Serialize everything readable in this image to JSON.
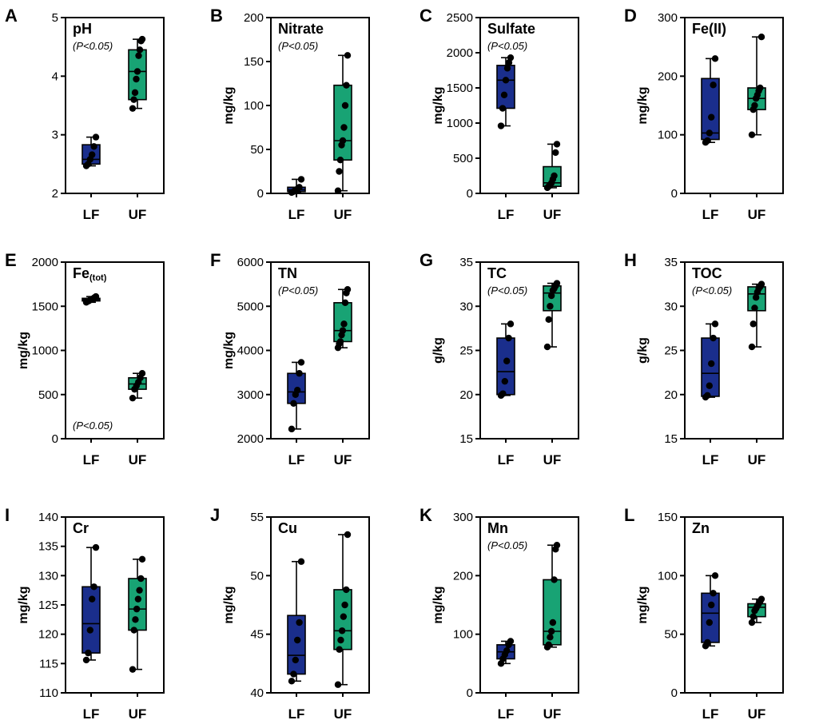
{
  "colors": {
    "LF": "#1a2e8c",
    "UF": "#18a374",
    "frame": "#000000",
    "point": "#000000"
  },
  "chart_data": [
    {
      "panel": "A",
      "type": "box",
      "title": "pH",
      "title_sub": "",
      "note": "(P<0.05)",
      "note_pos": "top",
      "ylabel": "",
      "ylim": [
        2,
        5
      ],
      "yticks": [
        "2",
        "3",
        "4",
        "5"
      ],
      "ytick_values": [
        2,
        3,
        4,
        5
      ],
      "categories": [
        "LF",
        "UF"
      ],
      "series": [
        {
          "name": "LF",
          "min": 2.47,
          "q1": 2.5,
          "median": 2.58,
          "q3": 2.83,
          "max": 2.96,
          "points": [
            2.47,
            2.5,
            2.58,
            2.66,
            2.8,
            2.96
          ]
        },
        {
          "name": "UF",
          "min": 3.45,
          "q1": 3.6,
          "median": 4.08,
          "q3": 4.45,
          "max": 4.63,
          "points": [
            3.45,
            3.6,
            3.72,
            3.95,
            4.08,
            4.35,
            4.45,
            4.6,
            4.63
          ]
        }
      ]
    },
    {
      "panel": "B",
      "type": "box",
      "title": "Nitrate",
      "title_sub": "",
      "note": "(P<0.05)",
      "note_pos": "top",
      "ylabel": "mg/kg",
      "ylim": [
        0,
        200
      ],
      "yticks": [
        "0",
        "50",
        "100",
        "150",
        "200"
      ],
      "ytick_values": [
        0,
        50,
        100,
        150,
        200
      ],
      "categories": [
        "LF",
        "UF"
      ],
      "series": [
        {
          "name": "LF",
          "min": 1,
          "q1": 2,
          "median": 4,
          "q3": 7,
          "max": 16,
          "points": [
            1,
            2,
            4,
            5,
            7,
            16
          ]
        },
        {
          "name": "UF",
          "min": 3,
          "q1": 38,
          "median": 60,
          "q3": 123,
          "max": 157,
          "points": [
            3,
            25,
            38,
            55,
            60,
            75,
            100,
            123,
            157
          ]
        }
      ]
    },
    {
      "panel": "C",
      "type": "box",
      "title": "Sulfate",
      "title_sub": "",
      "note": "(P<0.05)",
      "note_pos": "top",
      "ylabel": "mg/kg",
      "ylim": [
        0,
        2500
      ],
      "yticks": [
        "0",
        "500",
        "1000",
        "1500",
        "2000",
        "2500"
      ],
      "ytick_values": [
        0,
        500,
        1000,
        1500,
        2000,
        2500
      ],
      "categories": [
        "LF",
        "UF"
      ],
      "series": [
        {
          "name": "LF",
          "min": 960,
          "q1": 1210,
          "median": 1610,
          "q3": 1820,
          "max": 1930,
          "points": [
            960,
            1210,
            1400,
            1610,
            1780,
            1860,
            1930
          ]
        },
        {
          "name": "UF",
          "min": 80,
          "q1": 100,
          "median": 150,
          "q3": 380,
          "max": 700,
          "points": [
            80,
            100,
            120,
            150,
            200,
            250,
            580,
            700
          ]
        }
      ]
    },
    {
      "panel": "D",
      "type": "box",
      "title": "Fe(II)",
      "title_sub": "",
      "note": "",
      "note_pos": "",
      "ylabel": "mg/kg",
      "ylim": [
        0,
        300
      ],
      "yticks": [
        "0",
        "100",
        "200",
        "300"
      ],
      "ytick_values": [
        0,
        100,
        200,
        300
      ],
      "categories": [
        "LF",
        "UF"
      ],
      "series": [
        {
          "name": "LF",
          "min": 87,
          "q1": 92,
          "median": 103,
          "q3": 196,
          "max": 230,
          "points": [
            87,
            90,
            103,
            130,
            185,
            230
          ]
        },
        {
          "name": "UF",
          "min": 100,
          "q1": 143,
          "median": 162,
          "q3": 180,
          "max": 267,
          "points": [
            100,
            143,
            150,
            162,
            168,
            175,
            180,
            267
          ]
        }
      ]
    },
    {
      "panel": "E",
      "type": "box",
      "title": "Fe",
      "title_sub": "(tot)",
      "note": "(P<0.05)",
      "note_pos": "bottom",
      "ylabel": "mg/kg",
      "ylim": [
        0,
        2000
      ],
      "yticks": [
        "0",
        "500",
        "1000",
        "1500",
        "2000"
      ],
      "ytick_values": [
        0,
        500,
        1000,
        1500,
        2000
      ],
      "categories": [
        "LF",
        "UF"
      ],
      "series": [
        {
          "name": "LF",
          "min": 1545,
          "q1": 1560,
          "median": 1575,
          "q3": 1590,
          "max": 1610,
          "points": [
            1545,
            1555,
            1560,
            1570,
            1575,
            1580,
            1590,
            1600,
            1610
          ]
        },
        {
          "name": "UF",
          "min": 460,
          "q1": 560,
          "median": 620,
          "q3": 690,
          "max": 740,
          "points": [
            460,
            560,
            600,
            640,
            690,
            740
          ]
        }
      ]
    },
    {
      "panel": "F",
      "type": "box",
      "title": "TN",
      "title_sub": "",
      "note": "(P<0.05)",
      "note_pos": "top",
      "ylabel": "mg/kg",
      "ylim": [
        2000,
        6000
      ],
      "yticks": [
        "2000",
        "3000",
        "4000",
        "5000",
        "6000"
      ],
      "ytick_values": [
        2000,
        3000,
        4000,
        5000,
        6000
      ],
      "categories": [
        "LF",
        "UF"
      ],
      "series": [
        {
          "name": "LF",
          "min": 2220,
          "q1": 2800,
          "median": 3060,
          "q3": 3480,
          "max": 3730,
          "points": [
            2220,
            2800,
            3000,
            3100,
            3480,
            3730
          ]
        },
        {
          "name": "UF",
          "min": 4060,
          "q1": 4200,
          "median": 4450,
          "q3": 5080,
          "max": 5380,
          "points": [
            4060,
            4150,
            4200,
            4350,
            4450,
            4600,
            5080,
            5300,
            5380
          ]
        }
      ]
    },
    {
      "panel": "G",
      "type": "box",
      "title": "TC",
      "title_sub": "",
      "note": "(P<0.05)",
      "note_pos": "top",
      "ylabel": "g/kg",
      "ylim": [
        15,
        35
      ],
      "yticks": [
        "15",
        "20",
        "25",
        "30",
        "35"
      ],
      "ytick_values": [
        15,
        20,
        25,
        30,
        35
      ],
      "categories": [
        "LF",
        "UF"
      ],
      "series": [
        {
          "name": "LF",
          "min": 19.9,
          "q1": 20.0,
          "median": 22.6,
          "q3": 26.4,
          "max": 28.0,
          "points": [
            19.9,
            20.1,
            21.5,
            23.8,
            26.4,
            28.0
          ]
        },
        {
          "name": "UF",
          "min": 25.4,
          "q1": 29.5,
          "median": 31.5,
          "q3": 32.3,
          "max": 32.6,
          "points": [
            25.4,
            28.5,
            30.0,
            31.2,
            31.8,
            32.0,
            32.3,
            32.6
          ]
        }
      ]
    },
    {
      "panel": "H",
      "type": "box",
      "title": "TOC",
      "title_sub": "",
      "note": "(P<0.05)",
      "note_pos": "top",
      "ylabel": "g/kg",
      "ylim": [
        15,
        35
      ],
      "yticks": [
        "15",
        "20",
        "25",
        "30",
        "35"
      ],
      "ytick_values": [
        15,
        20,
        25,
        30,
        35
      ],
      "categories": [
        "LF",
        "UF"
      ],
      "series": [
        {
          "name": "LF",
          "min": 19.7,
          "q1": 19.8,
          "median": 22.4,
          "q3": 26.4,
          "max": 28.0,
          "points": [
            19.7,
            19.9,
            21.0,
            23.5,
            26.4,
            28.0
          ]
        },
        {
          "name": "UF",
          "min": 25.4,
          "q1": 29.5,
          "median": 31.4,
          "q3": 32.2,
          "max": 32.5,
          "points": [
            25.4,
            28.0,
            29.8,
            31.0,
            31.6,
            32.0,
            32.2,
            32.5
          ]
        }
      ]
    },
    {
      "panel": "I",
      "type": "box",
      "title": "Cr",
      "title_sub": "",
      "note": "",
      "note_pos": "",
      "ylabel": "mg/kg",
      "ylim": [
        110,
        140
      ],
      "yticks": [
        "110",
        "115",
        "120",
        "125",
        "130",
        "135",
        "140"
      ],
      "ytick_values": [
        110,
        115,
        120,
        125,
        130,
        135,
        140
      ],
      "categories": [
        "LF",
        "UF"
      ],
      "series": [
        {
          "name": "LF",
          "min": 115.6,
          "q1": 116.8,
          "median": 121.8,
          "q3": 128.1,
          "max": 134.8,
          "points": [
            115.6,
            116.8,
            120.7,
            126.0,
            128.1,
            134.8
          ]
        },
        {
          "name": "UF",
          "min": 114.0,
          "q1": 120.7,
          "median": 124.3,
          "q3": 129.5,
          "max": 132.8,
          "points": [
            114.0,
            120.7,
            122.5,
            124.3,
            126.0,
            127.5,
            129.5,
            132.8
          ]
        }
      ]
    },
    {
      "panel": "J",
      "type": "box",
      "title": "Cu",
      "title_sub": "",
      "note": "",
      "note_pos": "",
      "ylabel": "mg/kg",
      "ylim": [
        40,
        55
      ],
      "yticks": [
        "40",
        "45",
        "50",
        "55"
      ],
      "ytick_values": [
        40,
        45,
        50,
        55
      ],
      "categories": [
        "LF",
        "UF"
      ],
      "series": [
        {
          "name": "LF",
          "min": 41.0,
          "q1": 41.6,
          "median": 43.2,
          "q3": 46.6,
          "max": 51.2,
          "points": [
            41.0,
            41.6,
            42.8,
            44.5,
            46.0,
            51.2
          ]
        },
        {
          "name": "UF",
          "min": 40.7,
          "q1": 43.7,
          "median": 45.3,
          "q3": 48.8,
          "max": 53.5,
          "points": [
            40.7,
            43.7,
            44.5,
            45.3,
            46.5,
            47.5,
            48.8,
            53.5
          ]
        }
      ]
    },
    {
      "panel": "K",
      "type": "box",
      "title": "Mn",
      "title_sub": "",
      "note": "(P<0.05)",
      "note_pos": "top",
      "ylabel": "mg/kg",
      "ylim": [
        0,
        300
      ],
      "yticks": [
        "0",
        "100",
        "200",
        "300"
      ],
      "ytick_values": [
        0,
        100,
        200,
        300
      ],
      "categories": [
        "LF",
        "UF"
      ],
      "series": [
        {
          "name": "LF",
          "min": 50,
          "q1": 58,
          "median": 70,
          "q3": 82,
          "max": 88,
          "points": [
            50,
            58,
            65,
            72,
            82,
            88
          ]
        },
        {
          "name": "UF",
          "min": 78,
          "q1": 82,
          "median": 105,
          "q3": 193,
          "max": 252,
          "points": [
            78,
            82,
            95,
            105,
            120,
            193,
            245,
            252
          ]
        }
      ]
    },
    {
      "panel": "L",
      "type": "box",
      "title": "Zn",
      "title_sub": "",
      "note": "",
      "note_pos": "",
      "ylabel": "mg/kg",
      "ylim": [
        0,
        150
      ],
      "yticks": [
        "0",
        "50",
        "100",
        "150"
      ],
      "ytick_values": [
        0,
        50,
        100,
        150
      ],
      "categories": [
        "LF",
        "UF"
      ],
      "series": [
        {
          "name": "LF",
          "min": 40,
          "q1": 43,
          "median": 68,
          "q3": 85,
          "max": 100,
          "points": [
            40,
            43,
            60,
            75,
            85,
            100
          ]
        },
        {
          "name": "UF",
          "min": 60,
          "q1": 65,
          "median": 73,
          "q3": 76,
          "max": 80,
          "points": [
            60,
            65,
            70,
            72,
            74,
            76,
            78,
            80
          ]
        }
      ]
    }
  ]
}
